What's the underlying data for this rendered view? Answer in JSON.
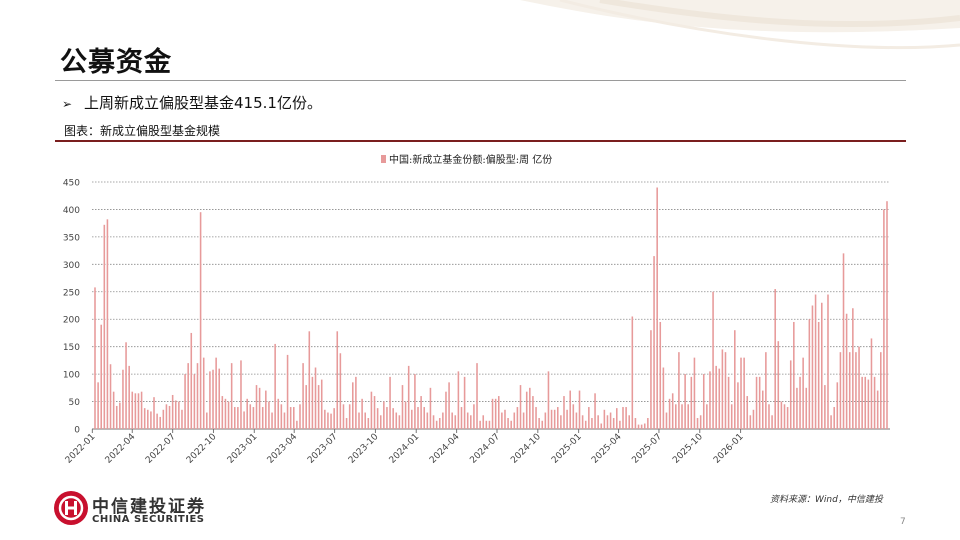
{
  "page": {
    "title": "公募资金",
    "bullet": "上周新成立偏股型基金415.1亿份。",
    "figure_caption": "图表：新成立偏股型基金规模",
    "source": "资料来源：Wind，中信建投",
    "page_number": "7"
  },
  "brand": {
    "name_cn": "中信建投证券",
    "name_en": "CHINA SECURITIES",
    "color": "#c8102e",
    "accent": "#7a1e1e"
  },
  "chart_data": {
    "type": "bar",
    "title": "",
    "xlabel": "",
    "ylabel": "",
    "ylim": [
      0,
      450
    ],
    "yticks": [
      0,
      50,
      100,
      150,
      200,
      250,
      300,
      350,
      400,
      450
    ],
    "grid": "horizontal-dotted",
    "legend_position": "top-center",
    "bar_color": "#e79a9a",
    "x_tick_labels": [
      "2022-01",
      "2022-04",
      "2022-07",
      "2022-10",
      "2023-01",
      "2023-04",
      "2023-07",
      "2023-10",
      "2024-01",
      "2024-04",
      "2024-07",
      "2024-10",
      "2025-01",
      "2025-04",
      "2025-07",
      "2025-10",
      "2026-01"
    ],
    "series": [
      {
        "name": "中国:新成立基金份额:偏股型:周 亿份",
        "x_start": "2022-01-07",
        "frequency": "weekly",
        "values": [
          258,
          85,
          190,
          372,
          382,
          118,
          68,
          42,
          48,
          108,
          158,
          115,
          68,
          65,
          65,
          68,
          38,
          35,
          32,
          58,
          28,
          22,
          35,
          45,
          42,
          62,
          52,
          50,
          35,
          100,
          120,
          175,
          100,
          120,
          395,
          130,
          30,
          105,
          108,
          130,
          110,
          60,
          55,
          50,
          120,
          40,
          40,
          125,
          32,
          55,
          45,
          40,
          80,
          75,
          40,
          70,
          50,
          30,
          155,
          55,
          45,
          30,
          135,
          40,
          40,
          15,
          45,
          120,
          80,
          178,
          95,
          112,
          80,
          90,
          35,
          30,
          28,
          38,
          178,
          138,
          45,
          20,
          45,
          85,
          95,
          30,
          55,
          30,
          20,
          68,
          60,
          38,
          25,
          50,
          40,
          95,
          38,
          30,
          25,
          80,
          50,
          115,
          35,
          100,
          40,
          60,
          40,
          30,
          75,
          25,
          15,
          20,
          30,
          68,
          85,
          30,
          25,
          105,
          40,
          95,
          30,
          25,
          45,
          120,
          15,
          25,
          15,
          15,
          55,
          55,
          60,
          30,
          35,
          20,
          15,
          30,
          40,
          80,
          30,
          68,
          75,
          60,
          40,
          20,
          15,
          30,
          105,
          35,
          35,
          40,
          25,
          60,
          35,
          70,
          45,
          30,
          70,
          25,
          15,
          40,
          20,
          65,
          25,
          10,
          35,
          25,
          30,
          20,
          38,
          15,
          40,
          40,
          25,
          205,
          20,
          8,
          8,
          10,
          20,
          180,
          315,
          440,
          195,
          112,
          30,
          55,
          65,
          45,
          140,
          45,
          100,
          45,
          95,
          130,
          20,
          25,
          100,
          45,
          105,
          250,
          115,
          110,
          145,
          140,
          95,
          45,
          180,
          85,
          130,
          130,
          60,
          25,
          35,
          95,
          95,
          70,
          140,
          45,
          25,
          255,
          160,
          50,
          45,
          40,
          125,
          195,
          75,
          95,
          130,
          75,
          200,
          225,
          245,
          195,
          230,
          80,
          245,
          25,
          40,
          85,
          140,
          320,
          210,
          140,
          220,
          140,
          150,
          95,
          95,
          90,
          165,
          95,
          70,
          140,
          400,
          415
        ]
      }
    ]
  }
}
